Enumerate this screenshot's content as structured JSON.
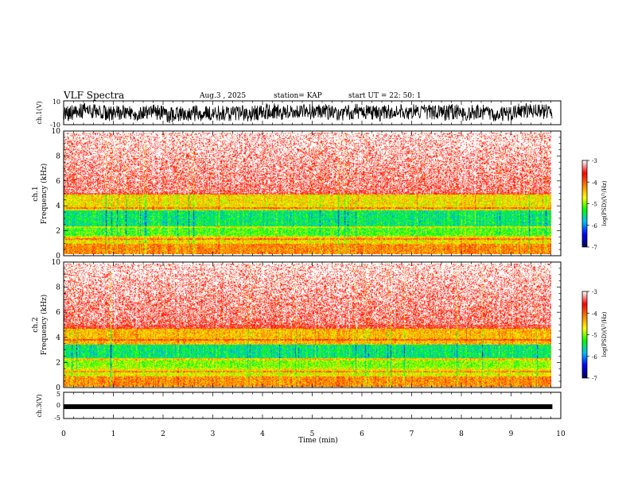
{
  "header": {
    "title": "VLF Spectra",
    "date": "Aug.3 , 2025",
    "station": "station= KAP",
    "start_ut": "start UT = 22: 50: 1"
  },
  "colorbar": {
    "label": "log(PSD)(V²/Hz)",
    "ticks": [
      "-3",
      "-4",
      "-5",
      "-6",
      "-7"
    ],
    "colors": [
      "#000060",
      "#0000ff",
      "#00c0ff",
      "#00ff00",
      "#ffff00",
      "#ff8000",
      "#ff0000",
      "#ffffff"
    ]
  },
  "chart_data": [
    {
      "type": "line",
      "name": "ch.1 waveform",
      "ylabel": "ch.1(V)",
      "ylim": [
        -10,
        10
      ],
      "ytick_labels": [
        "10",
        "-10"
      ],
      "xlim": [
        0,
        10
      ]
    },
    {
      "type": "heatmap",
      "name": "ch.1 spectrogram",
      "ylabel": "ch.1\nFrequency (kHz)",
      "ylim": [
        0,
        10
      ],
      "ytick_labels": [
        "0",
        "2",
        "4",
        "6",
        "8",
        "10"
      ],
      "xlim": [
        0,
        9.83
      ],
      "zlim": [
        -7,
        -3
      ],
      "bands_khz": [
        {
          "from": 0,
          "to": 0.8,
          "level": -4.2
        },
        {
          "from": 0.8,
          "to": 1.5,
          "level": -4.6
        },
        {
          "from": 1.5,
          "to": 2.3,
          "level": -5.2
        },
        {
          "from": 2.3,
          "to": 3.6,
          "level": -5.5
        },
        {
          "from": 3.6,
          "to": 4.9,
          "level": -4.6
        },
        {
          "from": 4.9,
          "to": 10,
          "level": -3.5
        }
      ]
    },
    {
      "type": "heatmap",
      "name": "ch.2 spectrogram",
      "ylabel": "ch.2\nFrequency (kHz)",
      "ylim": [
        0,
        10
      ],
      "ytick_labels": [
        "0",
        "2",
        "4",
        "6",
        "8",
        "10"
      ],
      "xlim": [
        0,
        9.83
      ],
      "zlim": [
        -7,
        -3
      ],
      "bands_khz": [
        {
          "from": 0,
          "to": 0.8,
          "level": -4.2
        },
        {
          "from": 0.8,
          "to": 1.5,
          "level": -4.7
        },
        {
          "from": 1.5,
          "to": 2.3,
          "level": -5.0
        },
        {
          "from": 2.3,
          "to": 3.4,
          "level": -5.5
        },
        {
          "from": 3.4,
          "to": 4.7,
          "level": -4.4
        },
        {
          "from": 4.7,
          "to": 10,
          "level": -3.5
        }
      ]
    },
    {
      "type": "line",
      "name": "ch.3 waveform",
      "ylabel": "ch.3(V)",
      "ylim": [
        -5,
        5
      ],
      "ytick_labels": [
        "5",
        "0",
        "-5"
      ],
      "xlim": [
        0,
        10
      ],
      "level": -0.5
    }
  ],
  "xaxis": {
    "label": "Time (min)",
    "ticks": [
      "0",
      "1",
      "2",
      "3",
      "4",
      "5",
      "6",
      "7",
      "8",
      "9",
      "10"
    ],
    "range": [
      0,
      10
    ],
    "data_end": 9.83
  }
}
